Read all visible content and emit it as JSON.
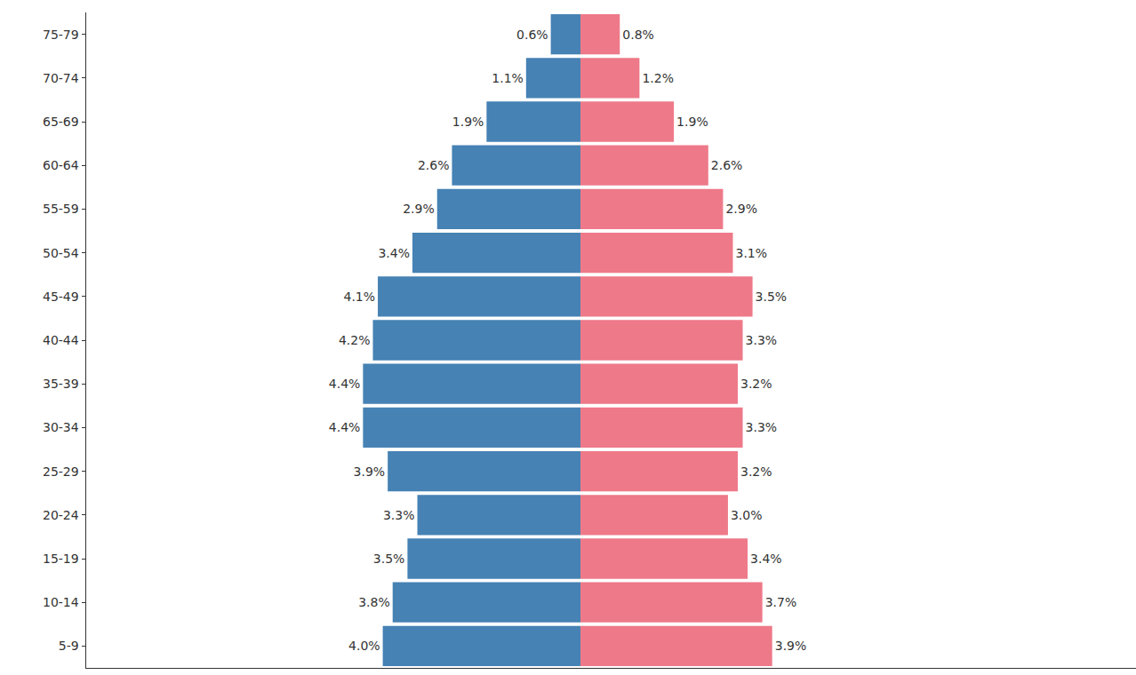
{
  "chart_data": [
    {
      "type": "bar",
      "orientation": "horizontal",
      "color": "#4682b4",
      "data_labels": true,
      "tick_labels": "y",
      "grid": false,
      "categories": [
        "75-79",
        "70-74",
        "65-69",
        "60-64",
        "55-59",
        "50-54",
        "45-49",
        "40-44",
        "35-39",
        "30-34",
        "25-29",
        "20-24",
        "15-19",
        "10-14",
        "5-9"
      ],
      "values": [
        0.6,
        1.1,
        1.9,
        2.6,
        2.9,
        3.4,
        4.1,
        4.2,
        4.4,
        4.4,
        3.9,
        3.3,
        3.5,
        3.8,
        4.0
      ],
      "value_labels": [
        "0.6%",
        "1.1%",
        "1.9%",
        "2.6%",
        "2.9%",
        "3.4%",
        "4.1%",
        "4.2%",
        "4.4%",
        "4.4%",
        "3.9%",
        "3.3%",
        "3.5%",
        "3.8%",
        "4.0%"
      ],
      "xlim": [
        10,
        0
      ]
    },
    {
      "type": "bar",
      "orientation": "horizontal",
      "color": "#ee7989",
      "data_labels": true,
      "tick_labels": false,
      "grid": false,
      "categories": [
        "75-79",
        "70-74",
        "65-69",
        "60-64",
        "55-59",
        "50-54",
        "45-49",
        "40-44",
        "35-39",
        "30-34",
        "25-29",
        "20-24",
        "15-19",
        "10-14",
        "5-9"
      ],
      "values": [
        0.8,
        1.2,
        1.9,
        2.6,
        2.9,
        3.1,
        3.5,
        3.3,
        3.2,
        3.3,
        3.2,
        3.0,
        3.4,
        3.7,
        3.9
      ],
      "value_labels": [
        "0.8%",
        "1.2%",
        "1.9%",
        "2.6%",
        "2.9%",
        "3.1%",
        "3.5%",
        "3.3%",
        "3.2%",
        "3.3%",
        "3.2%",
        "3.0%",
        "3.4%",
        "3.7%",
        "3.9%"
      ],
      "xlim": [
        0,
        11.3
      ]
    }
  ]
}
